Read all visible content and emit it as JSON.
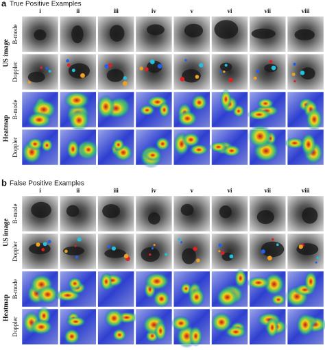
{
  "panels": [
    {
      "letter": "a",
      "title": "True Positive Examples",
      "columns": [
        "i",
        "ii",
        "iii",
        "iv",
        "v",
        "vi",
        "vii",
        "viii"
      ],
      "groups": [
        {
          "label": "US image",
          "rows": [
            "B-mode",
            "Doppler"
          ]
        },
        {
          "label": "Heatmap",
          "rows": [
            "B-mode",
            "Doppler"
          ]
        }
      ]
    },
    {
      "letter": "b",
      "title": "False Positive Examples",
      "columns": [
        "i",
        "ii",
        "iii",
        "iv",
        "v",
        "vi",
        "vii",
        "viii"
      ],
      "groups": [
        {
          "label": "US image",
          "rows": [
            "B-mode",
            "Doppler"
          ]
        },
        {
          "label": "Heatmap",
          "rows": [
            "B-mode",
            "Doppler"
          ]
        }
      ]
    }
  ]
}
